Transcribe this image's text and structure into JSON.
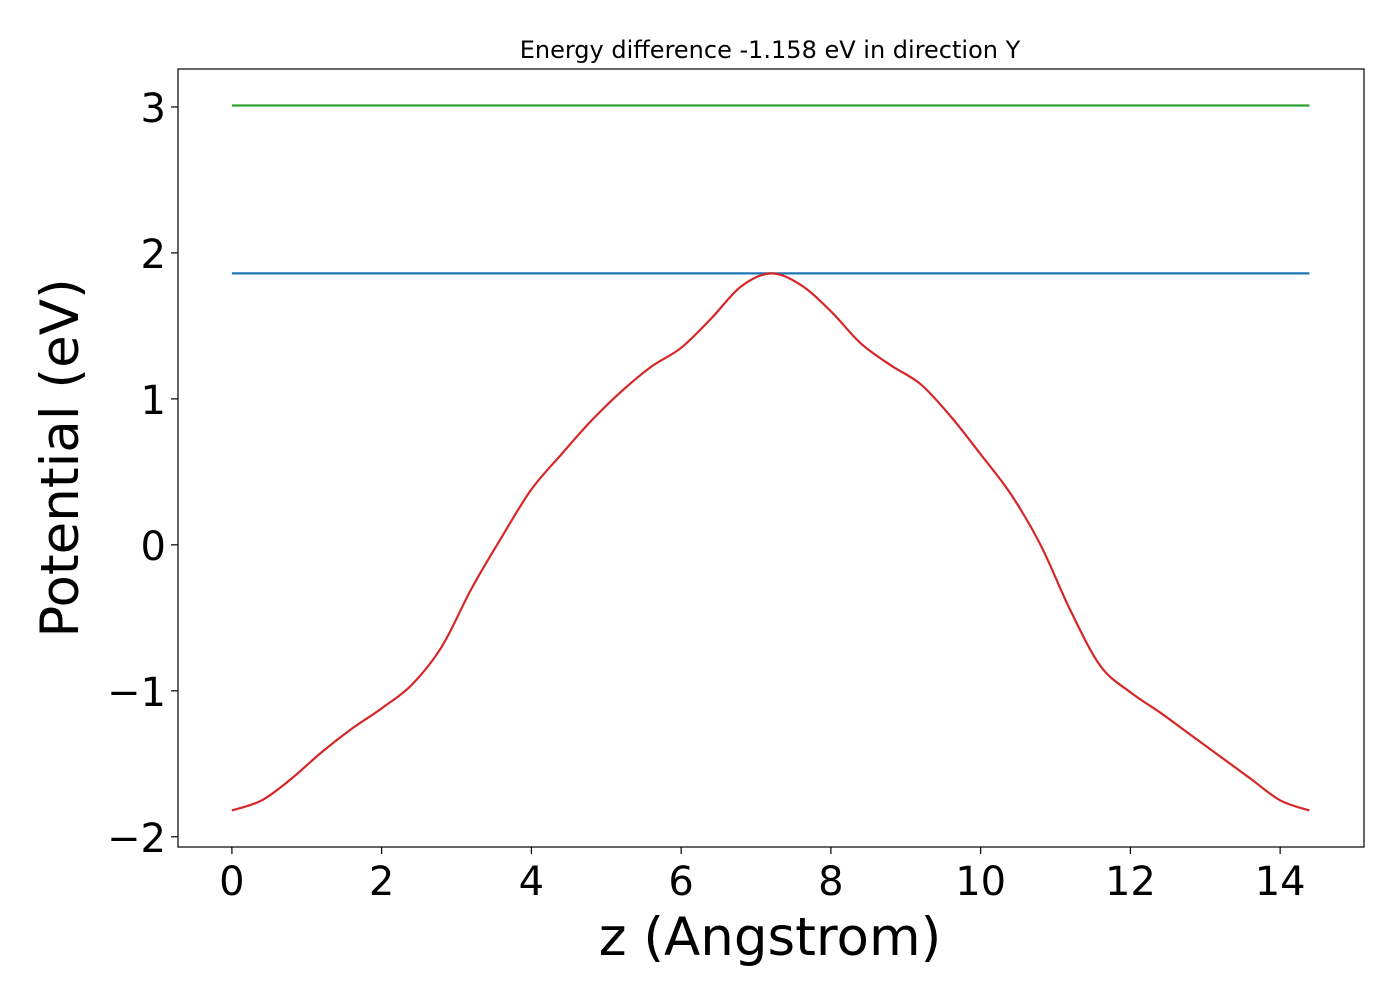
{
  "chart_data": {
    "type": "line",
    "title": "Energy difference -1.158 eV in direction Y",
    "xlabel": "z (Angstrom)",
    "ylabel": "Potential (eV)",
    "xlim": [
      -0.72,
      15.12
    ],
    "ylim": [
      -2.07,
      3.26
    ],
    "xticks": [
      0,
      2,
      4,
      6,
      8,
      10,
      12,
      14
    ],
    "yticks": [
      -2,
      -1,
      0,
      1,
      2,
      3
    ],
    "xtick_labels": [
      "0",
      "2",
      "4",
      "6",
      "8",
      "10",
      "12",
      "14"
    ],
    "ytick_labels": [
      "−2",
      "−1",
      "0",
      "1",
      "2",
      "3"
    ],
    "series": [
      {
        "name": "potential",
        "color": "#d62728",
        "x": [
          0,
          0.4,
          0.8,
          1.2,
          1.6,
          2.0,
          2.4,
          2.8,
          3.2,
          3.6,
          4.0,
          4.4,
          4.8,
          5.2,
          5.6,
          6.0,
          6.4,
          6.8,
          7.2,
          7.6,
          8.0,
          8.4,
          8.8,
          9.2,
          9.6,
          10.0,
          10.4,
          10.8,
          11.2,
          11.6,
          12.0,
          12.4,
          12.8,
          13.2,
          13.6,
          14.0,
          14.39
        ],
        "y": [
          -1.82,
          -1.75,
          -1.6,
          -1.42,
          -1.26,
          -1.12,
          -0.96,
          -0.7,
          -0.3,
          0.05,
          0.38,
          0.62,
          0.85,
          1.05,
          1.22,
          1.35,
          1.55,
          1.77,
          1.86,
          1.78,
          1.6,
          1.38,
          1.23,
          1.1,
          0.88,
          0.62,
          0.35,
          0.0,
          -0.45,
          -0.83,
          -1.01,
          -1.15,
          -1.3,
          -1.45,
          -1.6,
          -1.75,
          -1.82
        ]
      },
      {
        "name": "blue-level",
        "color": "#1f77b4",
        "x": [
          0,
          14.39
        ],
        "y": [
          1.86,
          1.86
        ]
      },
      {
        "name": "green-level",
        "color": "#2ca02c",
        "x": [
          0,
          14.39
        ],
        "y": [
          3.01,
          3.01
        ]
      }
    ]
  }
}
